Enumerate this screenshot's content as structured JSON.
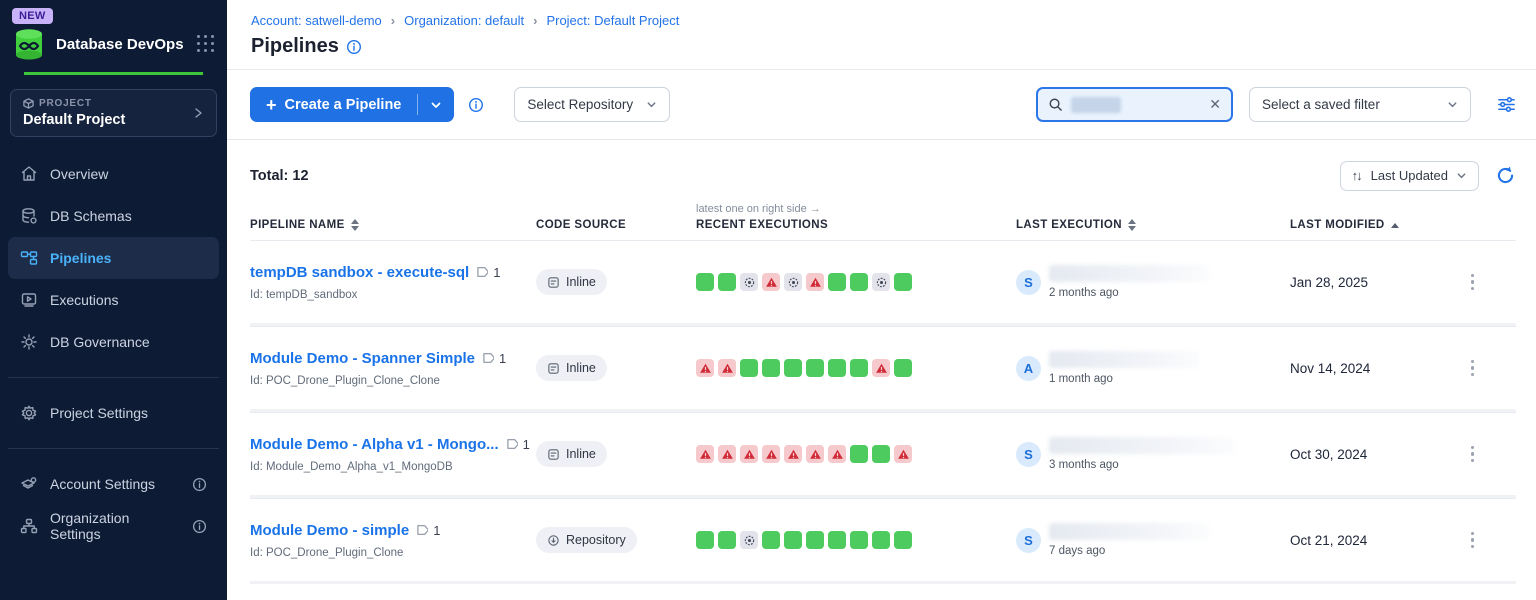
{
  "app": {
    "badge": "NEW",
    "title": "Database DevOps"
  },
  "sidebar": {
    "project_label": "PROJECT",
    "project_name": "Default Project",
    "items": [
      {
        "label": "Overview"
      },
      {
        "label": "DB Schemas"
      },
      {
        "label": "Pipelines",
        "active": true
      },
      {
        "label": "Executions"
      },
      {
        "label": "DB Governance"
      }
    ],
    "project_settings": "Project Settings",
    "account_settings": "Account Settings",
    "org_settings": "Organization Settings"
  },
  "breadcrumb": {
    "account": "Account: satwell-demo",
    "separator": "›",
    "org": "Organization: default",
    "project": "Project: Default Project"
  },
  "page": {
    "title": "Pipelines"
  },
  "toolbar": {
    "create_label": "Create a Pipeline",
    "select_repository": "Select Repository",
    "saved_filter": "Select a saved filter"
  },
  "list": {
    "total": "Total: 12",
    "sort": "Last Updated"
  },
  "table": {
    "note": "latest one on right side →",
    "headers": {
      "pipeline_name": "PIPELINE NAME",
      "code_source": "CODE SOURCE",
      "recent_executions": "RECENT EXECUTIONS",
      "last_execution": "LAST EXECUTION",
      "last_modified": "LAST MODIFIED"
    },
    "rows": [
      {
        "name": "tempDB sandbox - execute-sql",
        "tag_count": "1",
        "id": "Id: tempDB_sandbox",
        "code_source": "Inline",
        "executions": [
          "success",
          "success",
          "skipped",
          "error",
          "skipped",
          "error",
          "success",
          "success",
          "skipped",
          "success"
        ],
        "avatar": "S",
        "ago": "2 months ago",
        "modified": "Jan 28, 2025"
      },
      {
        "name": "Module Demo - Spanner Simple",
        "tag_count": "1",
        "id": "Id: POC_Drone_Plugin_Clone_Clone",
        "code_source": "Inline",
        "executions": [
          "error",
          "error",
          "success",
          "success",
          "success",
          "success",
          "success",
          "success",
          "error",
          "success"
        ],
        "avatar": "A",
        "ago": "1 month ago",
        "modified": "Nov 14, 2024"
      },
      {
        "name": "Module Demo - Alpha v1 - Mongo...",
        "tag_count": "1",
        "id": "Id: Module_Demo_Alpha_v1_MongoDB",
        "code_source": "Inline",
        "executions": [
          "error",
          "error",
          "error",
          "error",
          "error",
          "error",
          "error",
          "success",
          "success",
          "error"
        ],
        "avatar": "S",
        "ago": "3 months ago",
        "modified": "Oct 30, 2024"
      },
      {
        "name": "Module Demo - simple",
        "tag_count": "1",
        "id": "Id: POC_Drone_Plugin_Clone",
        "code_source": "Repository",
        "executions": [
          "success",
          "success",
          "skipped",
          "success",
          "success",
          "success",
          "success",
          "success",
          "success",
          "success"
        ],
        "avatar": "S",
        "ago": "7 days ago",
        "modified": "Oct 21, 2024"
      }
    ]
  },
  "colors": {
    "accent_blue": "#2071e3",
    "link_blue": "#1a73e8",
    "active_cyan": "#4ab2f8",
    "success_green": "#4ecb5e",
    "error_red": "#cf2a36",
    "error_bg": "#f6c9cd",
    "skipped_bg": "#e3e4eb",
    "sidebar_bg": "#0d1b34",
    "brand_green": "#3dc53b",
    "new_badge_bg": "#c8b2f8"
  }
}
